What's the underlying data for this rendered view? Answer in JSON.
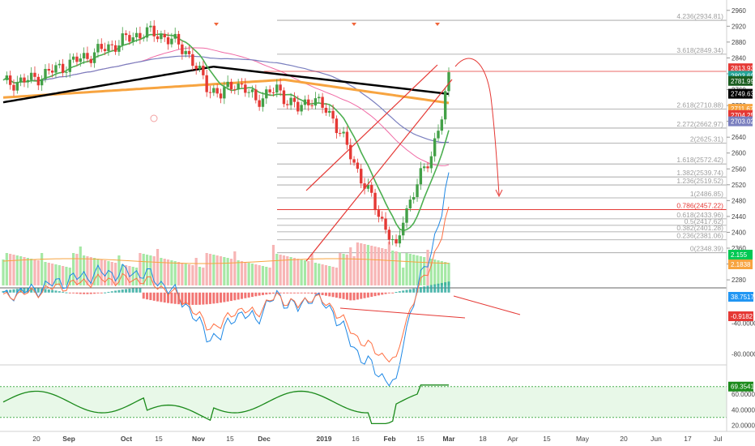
{
  "chart_data": {
    "type": "candlestick",
    "main_panel": {
      "ylim": [
        2270,
        2980
      ],
      "y_ticks": [
        2280,
        2320,
        2360,
        2400,
        2440,
        2480,
        2520,
        2560,
        2600,
        2640,
        2680,
        2720,
        2760,
        2800,
        2840,
        2880,
        2920,
        2960
      ],
      "grid": false,
      "fib_levels": [
        {
          "label": "4.236(2934.81)",
          "value": 2934.81,
          "color": "#9e9e9e"
        },
        {
          "label": "3.618(2849.34)",
          "value": 2849.34,
          "color": "#9e9e9e"
        },
        {
          "label": "2.618(2710.88)",
          "value": 2710.88,
          "color": "#9e9e9e"
        },
        {
          "label": "2.272(2662.97)",
          "value": 2662.97,
          "color": "#9e9e9e"
        },
        {
          "label": "2(2625.31)",
          "value": 2625.31,
          "color": "#9e9e9e"
        },
        {
          "label": "1.618(2572.42)",
          "value": 2572.42,
          "color": "#9e9e9e"
        },
        {
          "label": "1.382(2539.74)",
          "value": 2539.74,
          "color": "#9e9e9e"
        },
        {
          "label": "1.236(2519.52)",
          "value": 2519.52,
          "color": "#9e9e9e"
        },
        {
          "label": "1(2486.85)",
          "value": 2486.85,
          "color": "#9e9e9e"
        },
        {
          "label": "0.786(2457.22)",
          "value": 2457.22,
          "color": "#e53935"
        },
        {
          "label": "0.618(2433.96)",
          "value": 2433.96,
          "color": "#9e9e9e"
        },
        {
          "label": "0.5(2417.62)",
          "value": 2417.62,
          "color": "#9e9e9e"
        },
        {
          "label": "0.382(2401.28)",
          "value": 2401.28,
          "color": "#9e9e9e"
        },
        {
          "label": "0.236(2381.06)",
          "value": 2381.06,
          "color": "#9e9e9e"
        },
        {
          "label": "0(2348.39)",
          "value": 2348.39,
          "color": "#9e9e9e"
        }
      ],
      "price_badges": [
        {
          "label": "2813.93",
          "value": 2813.93,
          "color": "#e53935"
        },
        {
          "label": "2803.69",
          "value": 2795,
          "color": "#26a69a"
        },
        {
          "label": "2781.99",
          "value": 2782,
          "color": "#1b5e20"
        },
        {
          "label": "2749.63",
          "value": 2749.63,
          "color": "#000000"
        },
        {
          "label": "2711.67",
          "value": 2711.67,
          "color": "#f7a440"
        },
        {
          "label": "2704.25",
          "value": 2696,
          "color": "#e53935"
        },
        {
          "label": "2703.02",
          "value": 2680,
          "color": "#7a7fbf"
        }
      ],
      "volume_badges": [
        {
          "label": "2.155",
          "color": "#00c853"
        },
        {
          "label": "2.1838",
          "color": "#f7a440"
        }
      ]
    },
    "macd_panel": {
      "ylim": [
        -92,
        4
      ],
      "y_ticks": [
        -40,
        -80
      ],
      "y_tick_labels": [
        "-40.0000",
        "-80.0000"
      ],
      "badges": [
        {
          "label": "38.7517",
          "color": "#2196f3"
        },
        {
          "label": "-0.9182",
          "color": "#e53935"
        }
      ]
    },
    "rsi_panel": {
      "ylim": [
        14,
        96
      ],
      "y_ticks": [
        20,
        40,
        60
      ],
      "y_tick_labels": [
        "20.0000",
        "40.0000",
        "60.0000"
      ],
      "upper_band": 70,
      "lower_band": 30,
      "badge": {
        "label": "69.3541",
        "color": "#1b8a1b"
      }
    },
    "x_axis": {
      "ticks": [
        "20",
        "Sep",
        "Oct",
        "15",
        "Nov",
        "15",
        "Dec",
        "2019",
        "16",
        "Feb",
        "15",
        "Mar",
        "18",
        "Apr",
        "15",
        "May",
        "20",
        "Jun",
        "17",
        "Jul"
      ]
    }
  }
}
